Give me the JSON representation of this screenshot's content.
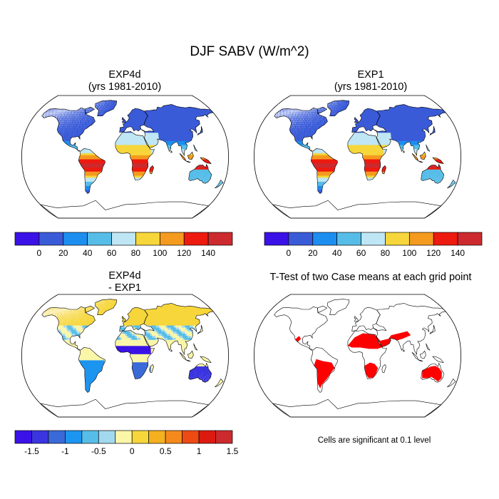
{
  "title": "DJF SABV (W/m^2)",
  "panels": [
    {
      "id": "exp4d",
      "title_line1": "EXP4d",
      "title_line2": "(yrs 1981-2010)"
    },
    {
      "id": "exp1",
      "title_line1": "EXP1",
      "title_line2": "(yrs 1981-2010)"
    },
    {
      "id": "diff",
      "title_line1": "EXP4d",
      "title_line2": "- EXP1"
    },
    {
      "id": "ttest",
      "title_line1": "T-Test of two Case means at each grid point"
    }
  ],
  "significance_note": "Cells are significant at 0.1 level",
  "chart_data": [
    {
      "type": "heatmap",
      "name": "EXP4d",
      "subtitle": "(yrs 1981-2010)",
      "colorbar": {
        "colors": [
          "#3a12e8",
          "#3a5bd8",
          "#1c8ef0",
          "#56bde8",
          "#bfe6f4",
          "#f6d63a",
          "#f49a1e",
          "#ee1a10",
          "#cc2a2e"
        ],
        "tick_labels": [
          "0",
          "20",
          "40",
          "60",
          "80",
          "100",
          "120",
          "140"
        ],
        "levels": [
          0,
          20,
          40,
          60,
          80,
          100,
          120,
          140
        ]
      },
      "regions": [
        {
          "region": "High latitudes NH",
          "approx_value": 10
        },
        {
          "region": "Mid latitudes NH",
          "approx_value": 30
        },
        {
          "region": "Sahara / Arabia",
          "approx_value": 60
        },
        {
          "region": "South America tropics",
          "approx_value": 130
        },
        {
          "region": "Southern Africa",
          "approx_value": 140
        },
        {
          "region": "Maritime continent",
          "approx_value": 130
        },
        {
          "region": "Australia",
          "approx_value": 50
        }
      ]
    },
    {
      "type": "heatmap",
      "name": "EXP1",
      "subtitle": "(yrs 1981-2010)",
      "colorbar": {
        "colors": [
          "#3a12e8",
          "#3a5bd8",
          "#1c8ef0",
          "#56bde8",
          "#bfe6f4",
          "#f6d63a",
          "#f49a1e",
          "#ee1a10",
          "#cc2a2e"
        ],
        "tick_labels": [
          "0",
          "20",
          "40",
          "60",
          "80",
          "100",
          "120",
          "140"
        ],
        "levels": [
          0,
          20,
          40,
          60,
          80,
          100,
          120,
          140
        ]
      },
      "regions": [
        {
          "region": "High latitudes NH",
          "approx_value": 10
        },
        {
          "region": "Mid latitudes NH",
          "approx_value": 30
        },
        {
          "region": "Sahara / Arabia",
          "approx_value": 60
        },
        {
          "region": "South America tropics",
          "approx_value": 130
        },
        {
          "region": "Southern Africa",
          "approx_value": 140
        },
        {
          "region": "Maritime continent",
          "approx_value": 130
        },
        {
          "region": "Australia",
          "approx_value": 50
        }
      ]
    },
    {
      "type": "heatmap",
      "name": "EXP4d - EXP1",
      "colorbar": {
        "colors": [
          "#3a12e8",
          "#3a35e0",
          "#3a6ad8",
          "#1c95f0",
          "#56bde8",
          "#a3d9ef",
          "#fbf6a8",
          "#f6d63a",
          "#f5b020",
          "#f58a1c",
          "#ee4a14",
          "#dd1a10",
          "#cc2a2e"
        ],
        "tick_labels": [
          "-1.5",
          "-1",
          "-0.5",
          "0",
          "0.5",
          "1",
          "1.5"
        ],
        "levels": [
          -1.5,
          -1.25,
          -1,
          -0.75,
          -0.5,
          -0.25,
          0,
          0.25,
          0.5,
          0.75,
          1,
          1.25,
          1.5
        ]
      },
      "regions": [
        {
          "region": "Northern Hemisphere land",
          "approx_value": -0.1
        },
        {
          "region": "Sahel band",
          "approx_value": -1.5
        },
        {
          "region": "Southern Africa",
          "approx_value": -1.0
        },
        {
          "region": "South America",
          "approx_value": -0.6
        },
        {
          "region": "Australia",
          "approx_value": -1.2
        }
      ]
    },
    {
      "type": "heatmap",
      "name": "T-Test of two Case means at each grid point",
      "significance_level": 0.1,
      "significant_color": "#ff0000",
      "regions": [
        {
          "region": "North Africa / Sahara",
          "significant": true
        },
        {
          "region": "Arabia / Middle East",
          "significant": true
        },
        {
          "region": "Southern Africa",
          "significant": true
        },
        {
          "region": "South America",
          "significant": true
        },
        {
          "region": "Australia",
          "significant": true
        }
      ]
    }
  ]
}
